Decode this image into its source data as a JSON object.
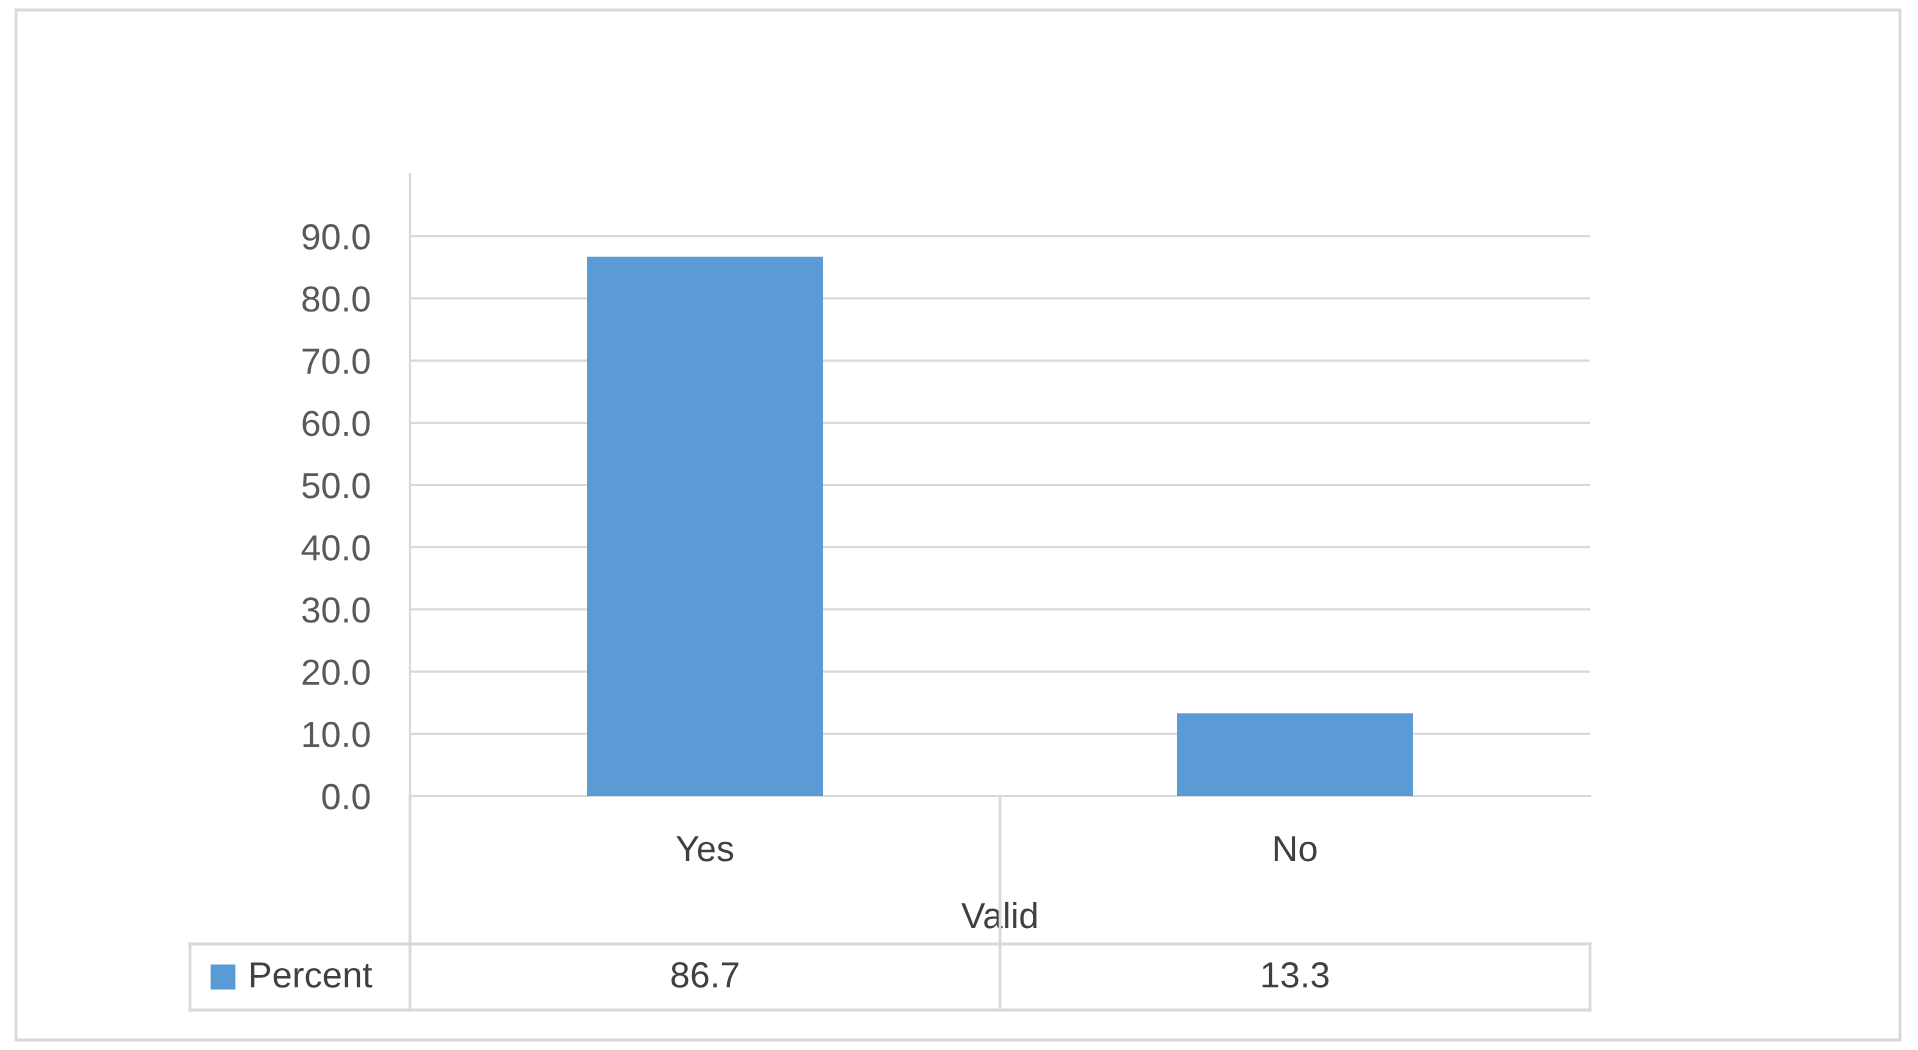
{
  "chart_data": {
    "type": "bar",
    "categories": [
      "Yes",
      "No"
    ],
    "xlabel": "Valid",
    "series": [
      {
        "name": "Percent",
        "color": "#5b9bd5",
        "values": [
          86.7,
          13.3
        ]
      }
    ],
    "ylim": [
      0,
      100
    ],
    "yticks": [
      {
        "value": 0,
        "label": "0.0"
      },
      {
        "value": 10,
        "label": "10.0"
      },
      {
        "value": 20,
        "label": "20.0"
      },
      {
        "value": 30,
        "label": "30.0"
      },
      {
        "value": 40,
        "label": "40.0"
      },
      {
        "value": 50,
        "label": "50.0"
      },
      {
        "value": 60,
        "label": "60.0"
      },
      {
        "value": 70,
        "label": "70.0"
      },
      {
        "value": 80,
        "label": "80.0"
      },
      {
        "value": 90,
        "label": "90.0"
      }
    ],
    "grid": "y",
    "legend": "bottom",
    "data_labels": true
  }
}
